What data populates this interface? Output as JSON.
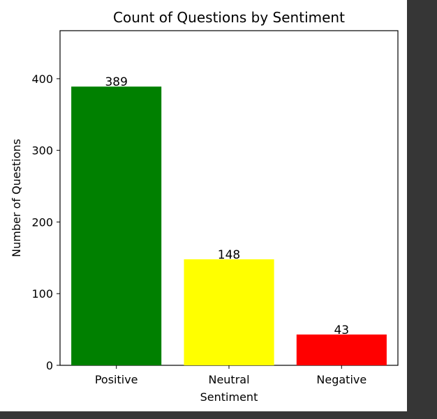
{
  "chart_data": {
    "type": "bar",
    "title": "Count of Questions by Sentiment",
    "xlabel": "Sentiment",
    "ylabel": "Number of Questions",
    "categories": [
      "Positive",
      "Neutral",
      "Negative"
    ],
    "values": [
      389,
      148,
      43
    ],
    "data_labels": [
      "389",
      "148",
      "43"
    ],
    "colors": [
      "#008000",
      "#ffff00",
      "#ff0000"
    ],
    "ylim": [
      0,
      467
    ],
    "yticks": [
      0,
      100,
      200,
      300,
      400
    ],
    "ytick_labels": [
      "0",
      "100",
      "200",
      "300",
      "400"
    ],
    "grid": false,
    "legend": "none"
  }
}
